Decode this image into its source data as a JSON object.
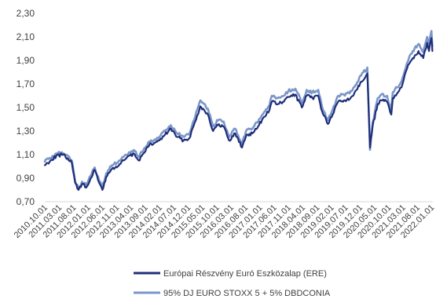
{
  "chart_data": {
    "type": "line",
    "ylim": [
      0.7,
      2.3
    ],
    "yticks": [
      "0,70",
      "0,90",
      "1,10",
      "1,30",
      "1,50",
      "1,70",
      "1,90",
      "2,10",
      "2,30"
    ],
    "xlim": [
      "2010-10-01",
      "2022-01-15"
    ],
    "xticks": [
      "2010.10.01",
      "2011.03.01",
      "2011.08.01",
      "2012.01.01",
      "2012.06.01",
      "2012.11.01",
      "2013.04.01",
      "2013.09.01",
      "2014.02.01",
      "2014.07.01",
      "2014.12.01",
      "2015.05.01",
      "2015.10.01",
      "2016.03.01",
      "2016.08.01",
      "2017.01.01",
      "2017.06.01",
      "2017.11.01",
      "2018.04.01",
      "2018.09.01",
      "2019.02.01",
      "2019.07.01",
      "2019.12.01",
      "2020.05.01",
      "2020.10.01",
      "2021.03.01",
      "2021.08.01",
      "2022.01.01"
    ],
    "grid": false,
    "legend_position": "bottom",
    "series": [
      {
        "name": "Európai Részvény Euró Eszközalap (ERE)",
        "color": "#1f2f7a",
        "x": [
          "2010-10-01",
          "2010-12-01",
          "2011-02-01",
          "2011-04-01",
          "2011-06-01",
          "2011-07-15",
          "2011-08-20",
          "2011-09-25",
          "2011-11-01",
          "2011-12-15",
          "2012-02-01",
          "2012-03-15",
          "2012-05-01",
          "2012-06-05",
          "2012-07-15",
          "2012-09-15",
          "2012-11-15",
          "2013-01-15",
          "2013-03-15",
          "2013-05-15",
          "2013-06-25",
          "2013-08-15",
          "2013-10-15",
          "2013-12-15",
          "2014-02-01",
          "2014-04-01",
          "2014-06-01",
          "2014-08-08",
          "2014-10-15",
          "2014-12-15",
          "2015-02-15",
          "2015-04-10",
          "2015-05-20",
          "2015-07-01",
          "2015-08-25",
          "2015-10-15",
          "2015-12-15",
          "2016-02-11",
          "2016-04-15",
          "2016-06-27",
          "2016-08-15",
          "2016-10-15",
          "2016-12-15",
          "2017-02-15",
          "2017-04-15",
          "2017-05-10",
          "2017-07-15",
          "2017-09-15",
          "2017-11-01",
          "2018-01-15",
          "2018-03-25",
          "2018-05-15",
          "2018-07-15",
          "2018-09-15",
          "2018-10-25",
          "2018-12-27",
          "2019-02-15",
          "2019-04-15",
          "2019-06-15",
          "2019-08-15",
          "2019-10-15",
          "2019-12-15",
          "2020-02-19",
          "2020-03-18",
          "2020-04-15",
          "2020-06-08",
          "2020-07-15",
          "2020-09-15",
          "2020-10-30",
          "2020-11-15",
          "2020-12-31",
          "2021-02-15",
          "2021-04-15",
          "2021-06-15",
          "2021-08-15",
          "2021-10-05",
          "2021-11-15",
          "2021-12-05",
          "2021-12-31",
          "2022-01-10"
        ],
        "y": [
          1.01,
          1.05,
          1.09,
          1.1,
          1.07,
          1.03,
          0.86,
          0.8,
          0.85,
          0.82,
          0.9,
          0.97,
          0.86,
          0.8,
          0.91,
          0.98,
          1.0,
          1.05,
          1.09,
          1.1,
          1.05,
          1.11,
          1.18,
          1.2,
          1.22,
          1.27,
          1.32,
          1.25,
          1.22,
          1.24,
          1.38,
          1.51,
          1.48,
          1.44,
          1.3,
          1.35,
          1.34,
          1.22,
          1.28,
          1.16,
          1.27,
          1.28,
          1.34,
          1.42,
          1.48,
          1.55,
          1.53,
          1.55,
          1.59,
          1.61,
          1.5,
          1.6,
          1.58,
          1.6,
          1.47,
          1.36,
          1.44,
          1.55,
          1.56,
          1.57,
          1.64,
          1.72,
          1.79,
          1.16,
          1.34,
          1.53,
          1.56,
          1.55,
          1.44,
          1.58,
          1.62,
          1.67,
          1.83,
          1.92,
          1.98,
          1.92,
          2.05,
          1.98,
          2.09,
          1.98
        ]
      },
      {
        "name": "95% DJ EURO STOXX 5 + 5% DBDCONIA",
        "color": "#7b96c8",
        "x": [
          "2010-10-01",
          "2010-12-01",
          "2011-02-01",
          "2011-04-01",
          "2011-06-01",
          "2011-07-15",
          "2011-08-20",
          "2011-09-25",
          "2011-11-01",
          "2011-12-15",
          "2012-02-01",
          "2012-03-15",
          "2012-05-01",
          "2012-06-05",
          "2012-07-15",
          "2012-09-15",
          "2012-11-15",
          "2013-01-15",
          "2013-03-15",
          "2013-05-15",
          "2013-06-25",
          "2013-08-15",
          "2013-10-15",
          "2013-12-15",
          "2014-02-01",
          "2014-04-01",
          "2014-06-01",
          "2014-08-08",
          "2014-10-15",
          "2014-12-15",
          "2015-02-15",
          "2015-04-10",
          "2015-05-20",
          "2015-07-01",
          "2015-08-25",
          "2015-10-15",
          "2015-12-15",
          "2016-02-11",
          "2016-04-15",
          "2016-06-27",
          "2016-08-15",
          "2016-10-15",
          "2016-12-15",
          "2017-02-15",
          "2017-04-15",
          "2017-05-10",
          "2017-07-15",
          "2017-09-15",
          "2017-11-01",
          "2018-01-15",
          "2018-03-25",
          "2018-05-15",
          "2018-07-15",
          "2018-09-15",
          "2018-10-25",
          "2018-12-27",
          "2019-02-15",
          "2019-04-15",
          "2019-06-15",
          "2019-08-15",
          "2019-10-15",
          "2019-12-15",
          "2020-02-19",
          "2020-03-18",
          "2020-04-15",
          "2020-06-08",
          "2020-07-15",
          "2020-09-15",
          "2020-10-30",
          "2020-11-15",
          "2020-12-31",
          "2021-02-15",
          "2021-04-15",
          "2021-06-15",
          "2021-08-15",
          "2021-10-05",
          "2021-11-15",
          "2021-12-05",
          "2021-12-31",
          "2022-01-10"
        ],
        "y": [
          1.04,
          1.07,
          1.11,
          1.12,
          1.09,
          1.05,
          0.87,
          0.81,
          0.87,
          0.84,
          0.92,
          0.99,
          0.88,
          0.82,
          0.94,
          1.01,
          1.03,
          1.08,
          1.12,
          1.13,
          1.08,
          1.14,
          1.21,
          1.23,
          1.25,
          1.3,
          1.35,
          1.28,
          1.25,
          1.27,
          1.42,
          1.56,
          1.53,
          1.49,
          1.34,
          1.39,
          1.38,
          1.25,
          1.32,
          1.19,
          1.31,
          1.32,
          1.38,
          1.46,
          1.52,
          1.6,
          1.58,
          1.6,
          1.64,
          1.66,
          1.54,
          1.65,
          1.63,
          1.65,
          1.51,
          1.39,
          1.48,
          1.6,
          1.61,
          1.62,
          1.69,
          1.77,
          1.84,
          1.14,
          1.37,
          1.58,
          1.61,
          1.6,
          1.48,
          1.63,
          1.67,
          1.72,
          1.88,
          1.98,
          2.04,
          1.97,
          2.1,
          2.03,
          2.15,
          2.02
        ]
      }
    ]
  }
}
